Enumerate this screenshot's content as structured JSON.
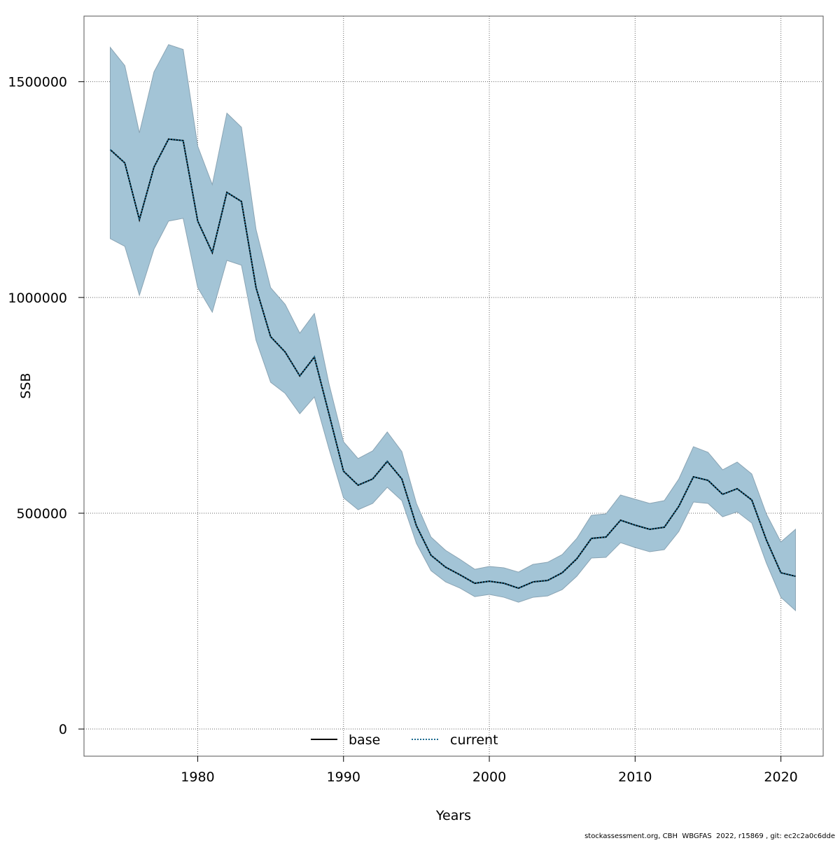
{
  "chart_data": {
    "type": "line",
    "title": "",
    "xlabel": "Years",
    "ylabel": "SSB",
    "xlim": [
      1972.2,
      2022.9
    ],
    "ylim": [
      -63000,
      1652000
    ],
    "x_ticks": [
      1980,
      1990,
      2000,
      2010,
      2020
    ],
    "y_ticks": [
      0,
      500000,
      1000000,
      1500000
    ],
    "y_tick_labels": [
      "0",
      "500000",
      "1000000",
      "1500000"
    ],
    "x_tick_labels": [
      "1980",
      "1990",
      "2000",
      "2010",
      "2020"
    ],
    "grid": true,
    "legend": {
      "placement": "bottom",
      "entries": [
        "base",
        "current"
      ]
    },
    "colors": {
      "band": "#a3c4d6",
      "band_edge": "#8aa4b4",
      "base": "#000000",
      "current": "#1a6a8f"
    },
    "x": [
      1974,
      1975,
      1976,
      1977,
      1978,
      1979,
      1980,
      1981,
      1982,
      1983,
      1984,
      1985,
      1986,
      1987,
      1988,
      1989,
      1990,
      1991,
      1992,
      1993,
      1994,
      1995,
      1996,
      1997,
      1998,
      1999,
      2000,
      2001,
      2002,
      2003,
      2004,
      2005,
      2006,
      2007,
      2008,
      2009,
      2010,
      2011,
      2012,
      2013,
      2014,
      2015,
      2016,
      2017,
      2018,
      2019,
      2020,
      2021
    ],
    "series": [
      {
        "name": "base",
        "values": [
          1342500,
          1311700,
          1180200,
          1302000,
          1366900,
          1363600,
          1177000,
          1103900,
          1243500,
          1222400,
          1022700,
          909100,
          873400,
          818200,
          862000,
          730500,
          597400,
          565000,
          579500,
          620100,
          579500,
          470800,
          402600,
          375000,
          357100,
          337700,
          342500,
          337700,
          326300,
          340900,
          344200,
          362000,
          394500,
          441600,
          444800,
          483800,
          472400,
          462700,
          467500,
          516200,
          584400,
          576300,
          543800,
          556800,
          530800,
          438300,
          362000,
          353900
        ]
      },
      {
        "name": "current",
        "values": [
          1342500,
          1311700,
          1180200,
          1302000,
          1366900,
          1363600,
          1177000,
          1103900,
          1243500,
          1222400,
          1022700,
          909100,
          873400,
          818200,
          862000,
          730500,
          597400,
          565000,
          579500,
          620100,
          579500,
          470800,
          402600,
          375000,
          357100,
          337700,
          342500,
          337700,
          326300,
          340900,
          344200,
          362000,
          394500,
          441600,
          444800,
          483800,
          472400,
          462700,
          467500,
          516200,
          584400,
          576300,
          543800,
          556800,
          530800,
          438300,
          362000,
          353900
        ]
      },
      {
        "name": "upper",
        "values": [
          1579500,
          1537300,
          1381500,
          1522700,
          1586000,
          1574700,
          1350600,
          1261400,
          1427000,
          1394500,
          1157500,
          1022700,
          983800,
          917200,
          962700,
          800300,
          665600,
          626600,
          644500,
          688300,
          642900,
          522700,
          444800,
          414000,
          392900,
          370100,
          376600,
          373400,
          363600,
          381500,
          386400,
          404200,
          441600,
          495100,
          498400,
          542200,
          532500,
          522700,
          529200,
          579500,
          654200,
          641200,
          600600,
          618500,
          590900,
          498400,
          433400,
          462700
        ]
      },
      {
        "name": "lower",
        "values": [
          1136400,
          1118500,
          1004900,
          1112000,
          1177000,
          1183400,
          1022700,
          965900,
          1086000,
          1074700,
          901000,
          803600,
          777600,
          730500,
          769500,
          649400,
          535700,
          508100,
          522700,
          560100,
          529200,
          430200,
          366900,
          340900,
          326300,
          306800,
          311700,
          305200,
          293800,
          305200,
          308400,
          323100,
          353900,
          396100,
          397700,
          431800,
          420500,
          410700,
          415600,
          457800,
          526000,
          522700,
          491900,
          503200,
          477300,
          384700,
          305200,
          274400
        ]
      }
    ]
  },
  "footer": "stockassessment.org, CBH  WBGFAS  2022, r15869 , git: ec2c2a0c6dde"
}
